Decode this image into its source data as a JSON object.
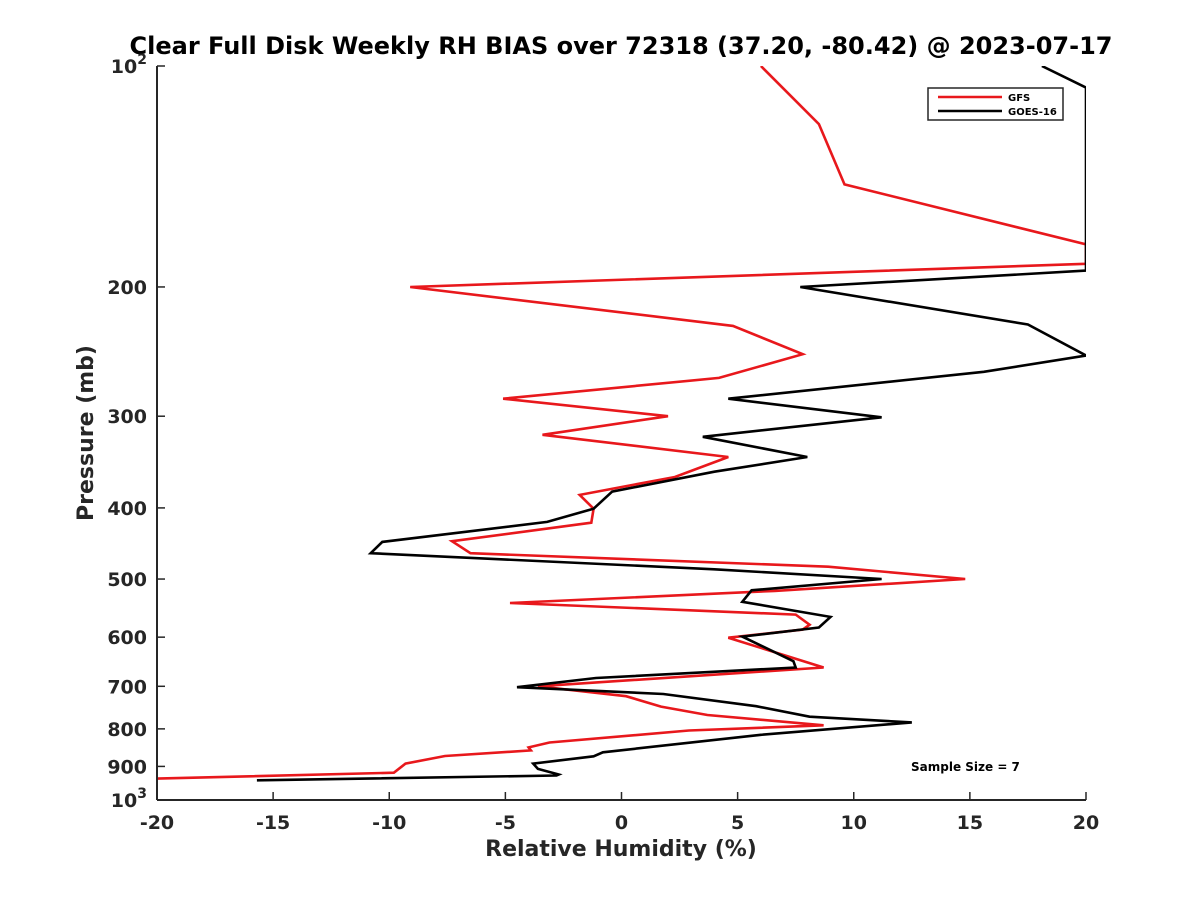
{
  "chart_data": {
    "type": "line",
    "title": "Clear Full Disk Weekly RH BIAS over 72318 (37.20, -80.42) @ 2023-07-17",
    "xlabel": "Relative Humidity (%)",
    "ylabel": "Pressure (mb)",
    "xlim": [
      -20,
      20
    ],
    "ylim": [
      100,
      1000
    ],
    "y_scale": "log",
    "y_reversed": true,
    "grid": false,
    "legend_position": "top-right",
    "x_ticks": [
      "-20",
      "-15",
      "-10",
      "-5",
      "0",
      "5",
      "10",
      "15",
      "20"
    ],
    "x_tick_values": [
      -20,
      -15,
      -10,
      -5,
      0,
      5,
      10,
      15,
      20
    ],
    "y_ticks": [
      {
        "value": 100,
        "base": "10",
        "exp": "2"
      },
      {
        "value": 200,
        "label": "200"
      },
      {
        "value": 300,
        "label": "300"
      },
      {
        "value": 400,
        "label": "400"
      },
      {
        "value": 500,
        "label": "500"
      },
      {
        "value": 600,
        "label": "600"
      },
      {
        "value": 700,
        "label": "700"
      },
      {
        "value": 800,
        "label": "800"
      },
      {
        "value": 900,
        "label": "900"
      },
      {
        "value": 1000,
        "base": "10",
        "exp": "3"
      }
    ],
    "annotation": "Sample Size = 7",
    "series": [
      {
        "name": "GFS",
        "color": "#e8181c",
        "points": [
          {
            "x": 6,
            "y": 100
          },
          {
            "x": 8.5,
            "y": 120
          },
          {
            "x": 9.6,
            "y": 145
          },
          {
            "x": 20,
            "y": 175
          },
          {
            "x": 20,
            "y": 186
          },
          {
            "x": -9.1,
            "y": 200
          },
          {
            "x": 4.8,
            "y": 226
          },
          {
            "x": 7.8,
            "y": 247
          },
          {
            "x": 4.2,
            "y": 266
          },
          {
            "x": -5.1,
            "y": 284
          },
          {
            "x": 2,
            "y": 300
          },
          {
            "x": -3.4,
            "y": 318
          },
          {
            "x": 4.6,
            "y": 341
          },
          {
            "x": 2.3,
            "y": 363
          },
          {
            "x": -1.8,
            "y": 384
          },
          {
            "x": -1.2,
            "y": 401
          },
          {
            "x": -1.3,
            "y": 419
          },
          {
            "x": -7.3,
            "y": 444
          },
          {
            "x": -6.5,
            "y": 461
          },
          {
            "x": 8.9,
            "y": 481
          },
          {
            "x": 14.8,
            "y": 500
          },
          {
            "x": 6.6,
            "y": 519
          },
          {
            "x": -4.8,
            "y": 539
          },
          {
            "x": 7.5,
            "y": 559
          },
          {
            "x": 8.1,
            "y": 577
          },
          {
            "x": 7.8,
            "y": 586
          },
          {
            "x": 4.6,
            "y": 601
          },
          {
            "x": 8.7,
            "y": 660
          },
          {
            "x": -3.6,
            "y": 700
          },
          {
            "x": 0.2,
            "y": 722
          },
          {
            "x": 1.7,
            "y": 746
          },
          {
            "x": 3.7,
            "y": 766
          },
          {
            "x": 8.7,
            "y": 791
          },
          {
            "x": 2.9,
            "y": 804
          },
          {
            "x": -3.1,
            "y": 835
          },
          {
            "x": -4,
            "y": 848
          },
          {
            "x": -3.9,
            "y": 856
          },
          {
            "x": -7.6,
            "y": 871
          },
          {
            "x": -9.3,
            "y": 892
          },
          {
            "x": -9.8,
            "y": 918
          },
          {
            "x": -20,
            "y": 935
          }
        ]
      },
      {
        "name": "GOES-16",
        "color": "#000000",
        "points": [
          {
            "x": 18.1,
            "y": 100
          },
          {
            "x": 20,
            "y": 107
          },
          {
            "x": 20,
            "y": 190
          },
          {
            "x": 7.7,
            "y": 200
          },
          {
            "x": 17.5,
            "y": 225
          },
          {
            "x": 20,
            "y": 248
          },
          {
            "x": 15.6,
            "y": 261
          },
          {
            "x": 4.6,
            "y": 284
          },
          {
            "x": 11.2,
            "y": 301
          },
          {
            "x": 3.5,
            "y": 320
          },
          {
            "x": 8,
            "y": 341
          },
          {
            "x": 4,
            "y": 357
          },
          {
            "x": -0.4,
            "y": 380
          },
          {
            "x": -1.2,
            "y": 401
          },
          {
            "x": -3.2,
            "y": 418
          },
          {
            "x": -10.3,
            "y": 445
          },
          {
            "x": -10.8,
            "y": 461
          },
          {
            "x": 4,
            "y": 485
          },
          {
            "x": 11.2,
            "y": 500
          },
          {
            "x": 5.6,
            "y": 518
          },
          {
            "x": 5.2,
            "y": 537
          },
          {
            "x": 9,
            "y": 563
          },
          {
            "x": 8.5,
            "y": 582
          },
          {
            "x": 5.2,
            "y": 599
          },
          {
            "x": 7.4,
            "y": 647
          },
          {
            "x": 7.5,
            "y": 660
          },
          {
            "x": -1.1,
            "y": 682
          },
          {
            "x": -4.5,
            "y": 702
          },
          {
            "x": 1.8,
            "y": 717
          },
          {
            "x": 5.8,
            "y": 745
          },
          {
            "x": 8.1,
            "y": 770
          },
          {
            "x": 12.5,
            "y": 784
          },
          {
            "x": 6,
            "y": 815
          },
          {
            "x": -0.8,
            "y": 861
          },
          {
            "x": -1.2,
            "y": 872
          },
          {
            "x": -3.8,
            "y": 892
          },
          {
            "x": -3.6,
            "y": 907
          },
          {
            "x": -2.7,
            "y": 923
          },
          {
            "x": -2.8,
            "y": 926
          },
          {
            "x": -15.7,
            "y": 940
          }
        ]
      }
    ]
  }
}
